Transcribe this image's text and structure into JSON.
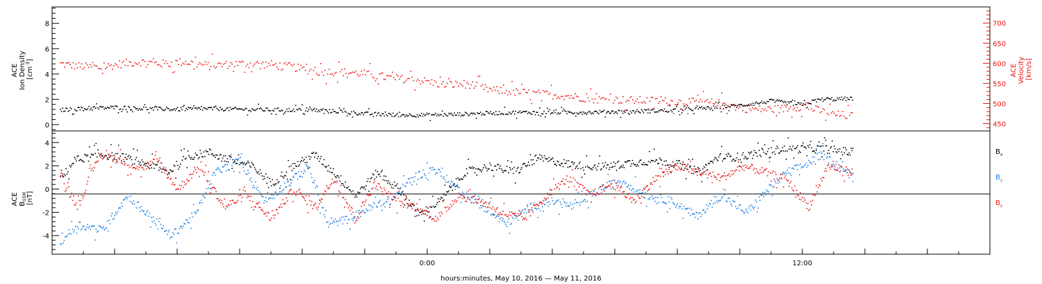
{
  "footer_label": "hours:minutes, May 10, 2016 — May 11, 2016",
  "colors": {
    "black": "#000000",
    "red": "#ee1111",
    "blue": "#1f7fe0"
  },
  "chart_data": [
    {
      "panel": "top",
      "type": "scatter",
      "left_axis": {
        "label_lines": [
          "ACE",
          "Ion Density"
        ],
        "unit_text": "[cm",
        "unit_sup": "-3",
        "unit_close": "]",
        "ylim": [
          -0.5,
          9.3
        ],
        "ticks": [
          0,
          2,
          4,
          6,
          8
        ]
      },
      "right_axis": {
        "label_lines": [
          "ACE",
          "Velocity"
        ],
        "unit_text": "[km/s]",
        "ylim": [
          432,
          740
        ],
        "ticks": [
          450,
          500,
          550,
          600,
          650,
          700
        ]
      },
      "xlim_hours": [
        -12,
        18
      ],
      "series": [
        {
          "color": "red",
          "axis": "right",
          "points": [
            [
              -11.75,
              600
            ],
            [
              -11.3,
              595
            ],
            [
              -10.5,
              590
            ],
            [
              -9.8,
              600
            ],
            [
              -9.2,
              605
            ],
            [
              -8.5,
              600
            ],
            [
              -7.8,
              605
            ],
            [
              -7.0,
              595
            ],
            [
              -6.0,
              600
            ],
            [
              -5.0,
              598
            ],
            [
              -4.2,
              590
            ],
            [
              -3.5,
              580
            ],
            [
              -2.8,
              580
            ],
            [
              -2.0,
              575
            ],
            [
              -1.2,
              565
            ],
            [
              -0.3,
              560
            ],
            [
              0.5,
              548
            ],
            [
              1.3,
              550
            ],
            [
              2.0,
              535
            ],
            [
              2.8,
              530
            ],
            [
              3.6,
              525
            ],
            [
              4.5,
              520
            ],
            [
              5.4,
              512
            ],
            [
              6.3,
              510
            ],
            [
              7.2,
              508
            ],
            [
              8.0,
              505
            ],
            [
              8.8,
              505
            ],
            [
              9.6,
              500
            ],
            [
              10.0,
              490
            ],
            [
              10.5,
              487
            ],
            [
              11.0,
              487
            ],
            [
              11.5,
              489
            ],
            [
              12.0,
              495
            ],
            [
              12.5,
              484
            ],
            [
              13.0,
              474
            ],
            [
              13.6,
              470
            ]
          ]
        },
        {
          "color": "black",
          "axis": "left",
          "points": [
            [
              -11.75,
              1.2
            ],
            [
              -11.0,
              1.3
            ],
            [
              -10.0,
              1.4
            ],
            [
              -9.0,
              1.3
            ],
            [
              -8.0,
              1.25
            ],
            [
              -7.0,
              1.3
            ],
            [
              -6.0,
              1.25
            ],
            [
              -5.0,
              1.2
            ],
            [
              -4.0,
              1.2
            ],
            [
              -3.0,
              1.1
            ],
            [
              -2.0,
              0.9
            ],
            [
              -1.0,
              0.8
            ],
            [
              0.0,
              0.8
            ],
            [
              1.0,
              0.85
            ],
            [
              2.0,
              0.95
            ],
            [
              3.0,
              1.0
            ],
            [
              4.0,
              1.0
            ],
            [
              5.0,
              1.0
            ],
            [
              6.0,
              1.05
            ],
            [
              7.0,
              1.1
            ],
            [
              8.0,
              1.2
            ],
            [
              9.0,
              1.35
            ],
            [
              10.0,
              1.55
            ],
            [
              11.0,
              1.9
            ],
            [
              12.0,
              1.6
            ],
            [
              12.5,
              2.0
            ],
            [
              13.0,
              2.05
            ],
            [
              13.6,
              2.1
            ]
          ]
        }
      ]
    },
    {
      "panel": "bottom",
      "type": "scatter",
      "left_axis": {
        "label_lines": [
          "ACE",
          "B"
        ],
        "label_sub": "GSM",
        "unit_text": "[nT]",
        "ylim": [
          -5.6,
          5.0
        ],
        "ticks": [
          -4,
          -2,
          0,
          2,
          4
        ]
      },
      "xlim_hours": [
        -12,
        18
      ],
      "x_tick_labels": [
        "0:00",
        "12:00"
      ],
      "series": [
        {
          "name": "B",
          "name_sub": "x",
          "color": "black",
          "points": [
            [
              -11.75,
              0.8
            ],
            [
              -11.3,
              2.5
            ],
            [
              -10.5,
              3.0
            ],
            [
              -9.8,
              2.8
            ],
            [
              -9.0,
              2.2
            ],
            [
              -8.3,
              1.5
            ],
            [
              -7.7,
              2.8
            ],
            [
              -7.0,
              3.2
            ],
            [
              -6.3,
              2.5
            ],
            [
              -5.6,
              2.0
            ],
            [
              -5.0,
              0.5
            ],
            [
              -4.3,
              2.0
            ],
            [
              -3.6,
              3.0
            ],
            [
              -3.0,
              1.5
            ],
            [
              -2.3,
              -0.5
            ],
            [
              -1.6,
              1.5
            ],
            [
              -0.9,
              0.0
            ],
            [
              -0.3,
              -2.2
            ],
            [
              0.4,
              -1.0
            ],
            [
              1.2,
              1.5
            ],
            [
              2.0,
              2.0
            ],
            [
              2.8,
              1.5
            ],
            [
              3.5,
              2.7
            ],
            [
              4.3,
              2.3
            ],
            [
              5.0,
              2.0
            ],
            [
              5.8,
              2.0
            ],
            [
              6.5,
              2.3
            ],
            [
              7.3,
              2.5
            ],
            [
              8.0,
              2.2
            ],
            [
              8.7,
              1.5
            ],
            [
              9.3,
              2.8
            ],
            [
              10.0,
              2.8
            ],
            [
              10.7,
              3.2
            ],
            [
              11.4,
              3.5
            ],
            [
              12.0,
              3.5
            ],
            [
              12.7,
              3.5
            ],
            [
              13.6,
              3.2
            ]
          ]
        },
        {
          "name": "B",
          "name_sub": "y",
          "color": "blue",
          "points": [
            [
              -11.75,
              -4.5
            ],
            [
              -11.2,
              -3.0
            ],
            [
              -10.4,
              -3.5
            ],
            [
              -9.6,
              -0.5
            ],
            [
              -9.0,
              -2.0
            ],
            [
              -8.2,
              -4.0
            ],
            [
              -7.4,
              -2.0
            ],
            [
              -6.8,
              1.5
            ],
            [
              -6.0,
              2.5
            ],
            [
              -5.2,
              -1.0
            ],
            [
              -4.5,
              0.5
            ],
            [
              -3.8,
              2.0
            ],
            [
              -3.2,
              -3.0
            ],
            [
              -2.5,
              -2.5
            ],
            [
              -1.8,
              -1.5
            ],
            [
              -1.2,
              -1.0
            ],
            [
              -0.5,
              1.0
            ],
            [
              0.2,
              1.8
            ],
            [
              1.0,
              0.0
            ],
            [
              1.8,
              -1.5
            ],
            [
              2.5,
              -3.0
            ],
            [
              3.3,
              -1.5
            ],
            [
              4.0,
              -1.0
            ],
            [
              4.7,
              -1.5
            ],
            [
              5.5,
              0.0
            ],
            [
              6.2,
              0.8
            ],
            [
              7.0,
              -0.5
            ],
            [
              7.8,
              -1.0
            ],
            [
              8.6,
              -2.3
            ],
            [
              9.4,
              -0.5
            ],
            [
              10.2,
              -2.0
            ],
            [
              10.9,
              0.0
            ],
            [
              11.5,
              1.5
            ],
            [
              12.0,
              2.0
            ],
            [
              12.6,
              3.0
            ],
            [
              13.3,
              1.8
            ],
            [
              13.6,
              1.0
            ]
          ]
        },
        {
          "name": "B",
          "name_sub": "z",
          "color": "red",
          "points": [
            [
              -11.75,
              1.5
            ],
            [
              -11.2,
              -1.5
            ],
            [
              -10.5,
              3.0
            ],
            [
              -9.8,
              2.5
            ],
            [
              -9.2,
              1.8
            ],
            [
              -8.6,
              2.5
            ],
            [
              -8.0,
              0.0
            ],
            [
              -7.3,
              2.0
            ],
            [
              -6.5,
              -1.5
            ],
            [
              -5.8,
              -0.5
            ],
            [
              -5.0,
              -2.5
            ],
            [
              -4.3,
              0.0
            ],
            [
              -3.6,
              -1.5
            ],
            [
              -3.0,
              1.0
            ],
            [
              -2.3,
              -2.5
            ],
            [
              -1.7,
              0.5
            ],
            [
              -1.0,
              -1.0
            ],
            [
              -0.4,
              -1.5
            ],
            [
              0.3,
              -2.5
            ],
            [
              1.0,
              -0.5
            ],
            [
              1.7,
              -1.0
            ],
            [
              2.4,
              -2.0
            ],
            [
              3.1,
              -2.5
            ],
            [
              3.8,
              -0.5
            ],
            [
              4.5,
              1.0
            ],
            [
              5.2,
              -0.5
            ],
            [
              5.9,
              0.5
            ],
            [
              6.6,
              -1.0
            ],
            [
              7.3,
              1.0
            ],
            [
              8.0,
              2.0
            ],
            [
              8.7,
              1.5
            ],
            [
              9.4,
              1.0
            ],
            [
              10.1,
              2.0
            ],
            [
              10.8,
              1.5
            ],
            [
              11.5,
              0.8
            ],
            [
              12.2,
              -1.5
            ],
            [
              12.8,
              2.0
            ],
            [
              13.6,
              1.5
            ]
          ]
        }
      ]
    }
  ]
}
